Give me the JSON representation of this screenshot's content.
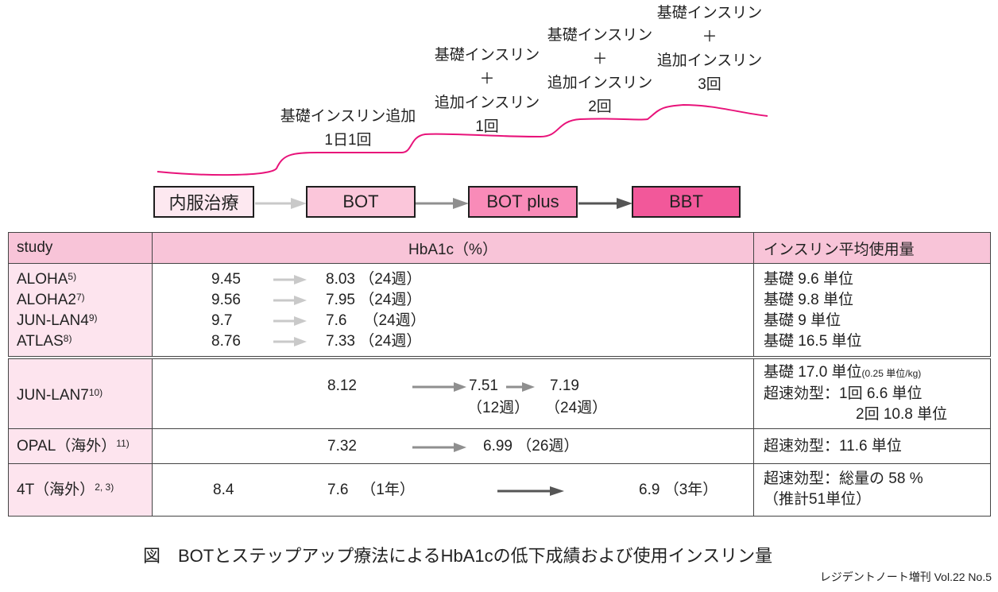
{
  "steps": [
    {
      "lines": [
        "基礎インスリン追加",
        "1日1回"
      ]
    },
    {
      "lines": [
        "基礎インスリン",
        "＋",
        "追加インスリン",
        "1回"
      ]
    },
    {
      "lines": [
        "基礎インスリン",
        "＋",
        "追加インスリン",
        "2回"
      ]
    },
    {
      "lines": [
        "基礎インスリン",
        "＋",
        "追加インスリン",
        "3回"
      ]
    }
  ],
  "stages": [
    "内服治療",
    "BOT",
    "BOT plus",
    "BBT"
  ],
  "colors": {
    "curve": "#e8137a",
    "stage_fills": [
      "#fde8f0",
      "#fbc6da",
      "#f98bb8",
      "#f2589a"
    ],
    "arrow_light": "#c9c9c9",
    "arrow_mid": "#8f8f8f",
    "arrow_dark": "#555555",
    "header_fill": "#f8c4d8",
    "study_fill": "#fde4ee"
  },
  "table": {
    "headers": {
      "study": "study",
      "hba1c": "HbA1c（%）",
      "insulin": "インスリン平均使用量"
    },
    "group1": [
      {
        "study": "ALOHA",
        "ref": "5)",
        "before": "9.45",
        "after": "8.03",
        "period": "（24週）",
        "insulin": "基礎 9.6 単位"
      },
      {
        "study": "ALOHA2",
        "ref": "7)",
        "before": "9.56",
        "after": "7.95",
        "period": "（24週）",
        "insulin": "基礎 9.8 単位"
      },
      {
        "study": "JUN-LAN4",
        "ref": "9)",
        "before": "9.7",
        "after": "7.6",
        "period": "（24週）",
        "insulin": "基礎 9 単位"
      },
      {
        "study": "ATLAS",
        "ref": "8)",
        "before": "8.76",
        "after": "7.33",
        "period": "（24週）",
        "insulin": "基礎 16.5 単位"
      }
    ],
    "junlan7": {
      "study": "JUN-LAN7",
      "ref": "10)",
      "v0": "8.12",
      "v1": "7.51",
      "v2": "7.19",
      "p1": "（12週）",
      "p2": "（24週）",
      "ins1": "基礎 17.0 単位",
      "ins1_note": "(0.25 単位/kg)",
      "ins2": "超速効型：1回  6.6 単位",
      "ins3": "2回 10.8 単位"
    },
    "opal": {
      "study": "OPAL（海外）",
      "ref": "11)",
      "before": "7.32",
      "after": "6.99",
      "period": "（26週）",
      "insulin": "超速効型：11.6 単位"
    },
    "t4": {
      "study": "4T（海外）",
      "ref": "2, 3)",
      "v0": "8.4",
      "v1": "7.6",
      "p1": "（1年）",
      "v2": "6.9",
      "p2": "（3年）",
      "ins1": "超速効型：総量の 58 %",
      "ins2": "（推計51単位）"
    }
  },
  "caption": "図　BOTとステップアップ療法によるHbA1cの低下成績および使用インスリン量",
  "footer": "レジデントノート増刊 Vol.22 No.5"
}
